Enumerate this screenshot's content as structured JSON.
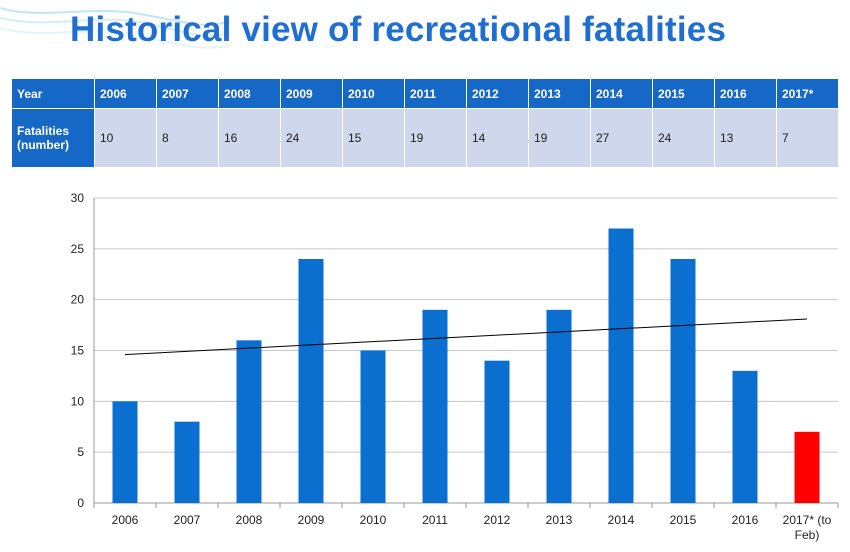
{
  "page": {
    "title": "Historical view of recreational fatalities"
  },
  "table": {
    "year_label": "Year",
    "fatalities_label_line1": "Fatalities",
    "fatalities_label_line2": "(number)",
    "years": [
      "2006",
      "2007",
      "2008",
      "2009",
      "2010",
      "2011",
      "2012",
      "2013",
      "2014",
      "2015",
      "2016",
      "2017*"
    ],
    "values": [
      "10",
      "8",
      "16",
      "24",
      "15",
      "19",
      "14",
      "19",
      "27",
      "24",
      "13",
      "7"
    ]
  },
  "colors": {
    "title": "#1f6fd1",
    "table_header": "#1668c7",
    "table_body": "#cfd7ec",
    "bar": "#0a6fcf",
    "bar_highlight": "#ff0000",
    "trendline": "#000000"
  },
  "chart_data": {
    "type": "bar",
    "categories": [
      [
        "2006"
      ],
      [
        "2007"
      ],
      [
        "2008"
      ],
      [
        "2009"
      ],
      [
        "2010"
      ],
      [
        "2011"
      ],
      [
        "2012"
      ],
      [
        "2013"
      ],
      [
        "2014"
      ],
      [
        "2015"
      ],
      [
        "2016"
      ],
      [
        "2017* (to",
        "Feb)"
      ]
    ],
    "values": [
      10,
      8,
      16,
      24,
      15,
      19,
      14,
      19,
      27,
      24,
      13,
      7
    ],
    "highlight_index": 11,
    "ylim": [
      0,
      30
    ],
    "yticks": [
      0,
      5,
      10,
      15,
      20,
      25,
      30
    ],
    "grid": true,
    "trendline": {
      "type": "linear",
      "start": 14.6,
      "end": 18.1
    },
    "title": "",
    "xlabel": "",
    "ylabel": ""
  }
}
